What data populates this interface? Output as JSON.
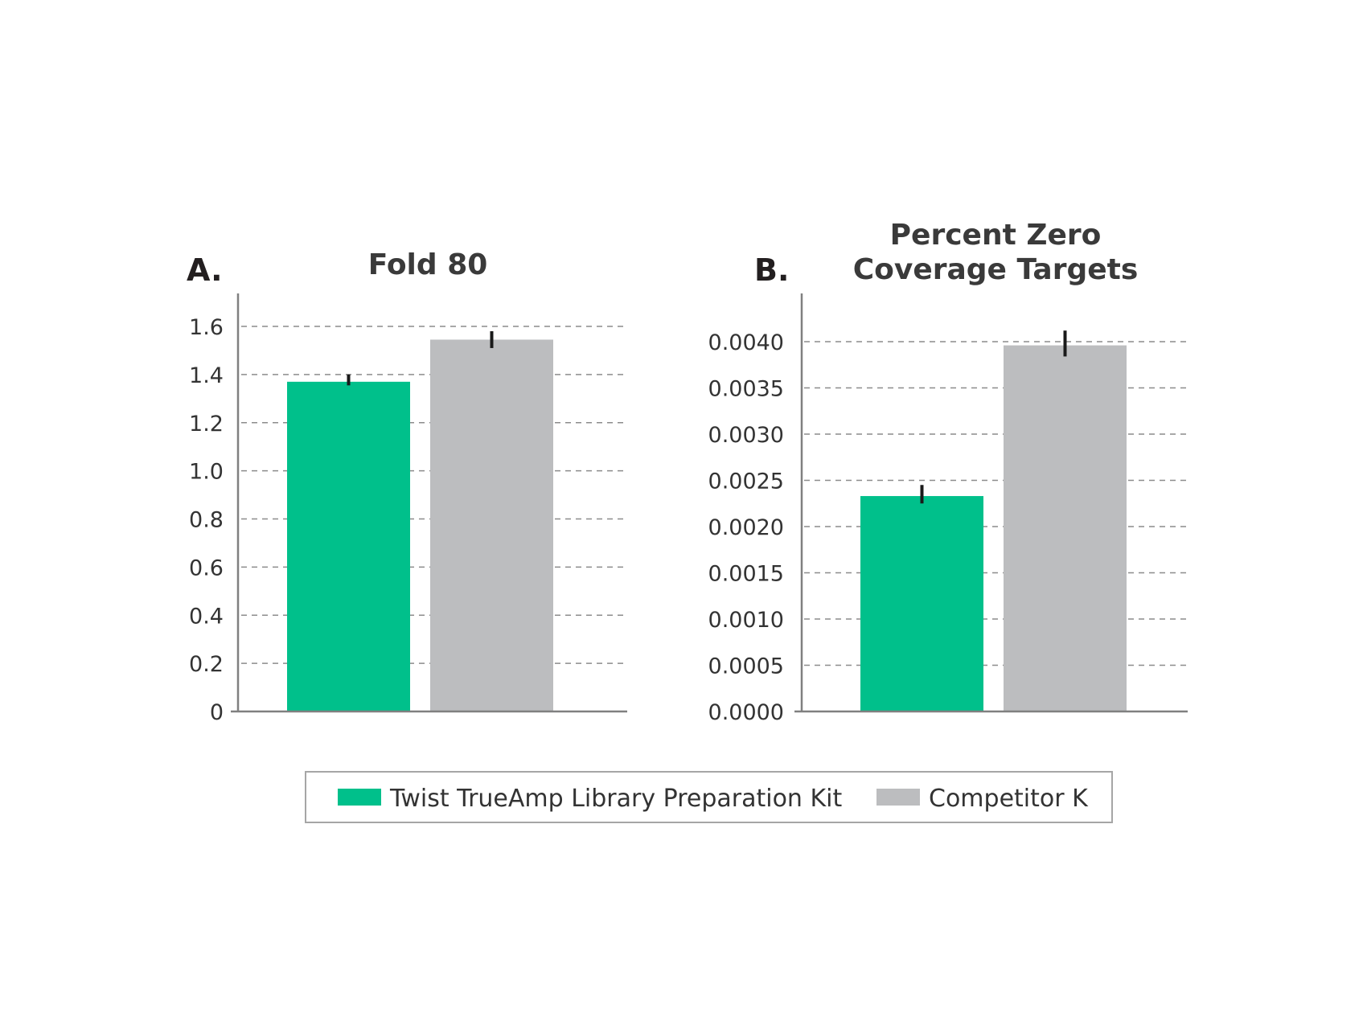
{
  "panels": [
    {
      "letter": "A.",
      "title": "Fold 80"
    },
    {
      "letter": "B.",
      "title_lines": [
        "Percent Zero",
        "Coverage Targets"
      ]
    }
  ],
  "legend": {
    "items": [
      {
        "label": "Twist TrueAmp Library Preparation Kit",
        "color": "#00c08b"
      },
      {
        "label": "Competitor K",
        "color": "#bcbdbf"
      }
    ]
  },
  "chart_data": [
    {
      "type": "bar",
      "title": "Fold 80",
      "categories": [
        "Twist TrueAmp Library Preparation Kit",
        "Competitor K"
      ],
      "values": [
        1.37,
        1.545
      ],
      "error": [
        [
          1.355,
          1.4
        ],
        [
          1.51,
          1.58
        ]
      ],
      "colors": [
        "#00c08b",
        "#bcbdbf"
      ],
      "ylim": [
        0,
        1.6
      ],
      "yticks": [
        "0",
        "0.2",
        "0.4",
        "0.6",
        "0.8",
        "1.0",
        "1.2",
        "1.4",
        "1.6"
      ],
      "ytick_values": [
        0,
        0.2,
        0.4,
        0.6,
        0.8,
        1.0,
        1.2,
        1.4,
        1.6
      ],
      "grid": true
    },
    {
      "type": "bar",
      "title": "Percent Zero Coverage Targets",
      "categories": [
        "Twist TrueAmp Library Preparation Kit",
        "Competitor K"
      ],
      "values": [
        0.00233,
        0.00396
      ],
      "error": [
        [
          0.00225,
          0.00245
        ],
        [
          0.00384,
          0.00412
        ]
      ],
      "colors": [
        "#00c08b",
        "#bcbdbf"
      ],
      "ylim": [
        0,
        0.004
      ],
      "yticks": [
        "0.0000",
        "0.0005",
        "0.0010",
        "0.0015",
        "0.0020",
        "0.0025",
        "0.0030",
        "0.0035",
        "0.0040"
      ],
      "ytick_values": [
        0,
        0.0005,
        0.001,
        0.0015,
        0.002,
        0.0025,
        0.003,
        0.0035,
        0.004
      ],
      "grid": true
    }
  ]
}
